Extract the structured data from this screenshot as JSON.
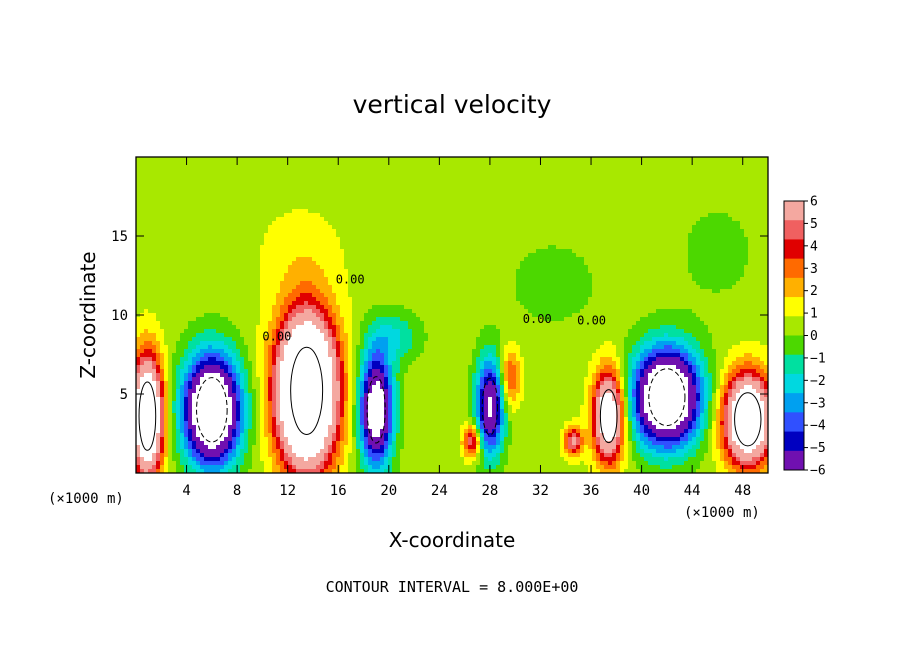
{
  "chart_data": {
    "type": "heatmap",
    "title": "vertical velocity",
    "xlabel": "X-coordinate",
    "ylabel": "Z-coordinate",
    "x_unit_label_left": "(×1000 m)",
    "x_unit_label_right": "(×1000 m)",
    "footer": "CONTOUR INTERVAL = 8.000E+00",
    "xlim": [
      0,
      50
    ],
    "ylim": [
      0,
      20
    ],
    "x_ticks": [
      4,
      8,
      12,
      16,
      20,
      24,
      28,
      32,
      36,
      40,
      44,
      48
    ],
    "y_ticks": [
      5,
      10,
      15
    ],
    "grid": false,
    "colorbar": {
      "position": "right",
      "tick_labels": [
        "6",
        "5",
        "4",
        "3",
        "2",
        "1",
        "0",
        "−1",
        "−2",
        "−3",
        "−4",
        "−5",
        "−6"
      ],
      "levels": [
        6,
        5,
        4,
        3,
        2,
        1,
        0,
        -1,
        -2,
        -3,
        -4,
        -5,
        -6
      ],
      "colors": [
        "#f4a8a0",
        "#f06060",
        "#e00000",
        "#ff6a00",
        "#ffb000",
        "#ffff00",
        "#a8e800",
        "#4cd800",
        "#00e0a0",
        "#00d8e0",
        "#00a0f0",
        "#3050ff",
        "#0000c0",
        "#7010b0"
      ]
    },
    "features": [
      {
        "sign": "+",
        "x": 0.9,
        "z": 3.6,
        "sx": 1.2,
        "sz": 3.6,
        "amp": 14
      },
      {
        "sign": "-",
        "x": 6.0,
        "z": 4.0,
        "sx": 2.2,
        "sz": 3.4,
        "amp": 14
      },
      {
        "sign": "+",
        "x": 13.5,
        "z": 5.2,
        "sx": 2.3,
        "sz": 4.6,
        "amp": 18
      },
      {
        "sign": "-",
        "x": 19.0,
        "z": 4.0,
        "sx": 1.3,
        "sz": 3.5,
        "amp": 11
      },
      {
        "sign": "-",
        "x": 20.5,
        "z": 8.6,
        "sx": 2.0,
        "sz": 1.6,
        "amp": 2.5
      },
      {
        "sign": "+",
        "x": 26.6,
        "z": 2.0,
        "sx": 0.7,
        "sz": 1.0,
        "amp": 6
      },
      {
        "sign": "-",
        "x": 28.0,
        "z": 4.2,
        "sx": 1.1,
        "sz": 3.0,
        "amp": 9
      },
      {
        "sign": "+",
        "x": 29.6,
        "z": 6.0,
        "sx": 0.8,
        "sz": 1.8,
        "amp": 4
      },
      {
        "sign": "+",
        "x": 34.6,
        "z": 2.0,
        "sx": 0.7,
        "sz": 0.9,
        "amp": 6
      },
      {
        "sign": "+",
        "x": 37.4,
        "z": 3.6,
        "sx": 1.2,
        "sz": 2.8,
        "amp": 11
      },
      {
        "sign": "-",
        "x": 42.0,
        "z": 4.8,
        "sx": 2.6,
        "sz": 3.0,
        "amp": 14
      },
      {
        "sign": "+",
        "x": 48.4,
        "z": 3.4,
        "sx": 1.9,
        "sz": 2.8,
        "amp": 13
      },
      {
        "sign": "-",
        "x": 33.0,
        "z": 12.0,
        "sx": 4.0,
        "sz": 3.0,
        "amp": 1.0
      },
      {
        "sign": "-",
        "x": 46.0,
        "z": 14.0,
        "sx": 4.0,
        "sz": 4.0,
        "amp": 0.8
      },
      {
        "sign": "+",
        "x": 13.0,
        "z": 14.0,
        "sx": 3.5,
        "sz": 3.0,
        "amp": 0.9
      }
    ],
    "contour_labels": [
      "0.00",
      "0.00",
      "0.00",
      "0.00"
    ]
  }
}
